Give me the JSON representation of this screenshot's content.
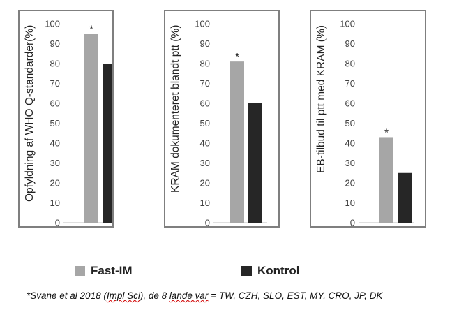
{
  "colors": {
    "fast_im": "#a6a6a6",
    "kontrol": "#262626",
    "axis": "#bfbfbf",
    "frame": "#7f7f7f"
  },
  "chart_data": [
    {
      "type": "bar",
      "ylabel": "Opfyldning af WHO Q-standarder(%)",
      "ylim": [
        0,
        100
      ],
      "yticks": [
        0,
        10,
        20,
        30,
        40,
        50,
        60,
        70,
        80,
        90,
        100
      ],
      "series": [
        {
          "name": "Fast-IM",
          "values": [
            95
          ],
          "annotation": "*"
        },
        {
          "name": "Kontrol",
          "values": [
            80
          ]
        }
      ]
    },
    {
      "type": "bar",
      "ylabel": "KRAM dokumenteret blandt ptt (%)",
      "ylim": [
        0,
        100
      ],
      "yticks": [
        0,
        10,
        20,
        30,
        40,
        50,
        60,
        70,
        80,
        90,
        100
      ],
      "series": [
        {
          "name": "Fast-IM",
          "values": [
            81
          ],
          "annotation": "*"
        },
        {
          "name": "Kontrol",
          "values": [
            60
          ]
        }
      ]
    },
    {
      "type": "bar",
      "ylabel": "EB-tilbud til ptt med KRAM (%)",
      "ylim": [
        0,
        100
      ],
      "yticks": [
        0,
        10,
        20,
        30,
        40,
        50,
        60,
        70,
        80,
        90,
        100
      ],
      "series": [
        {
          "name": "Fast-IM",
          "values": [
            43
          ],
          "annotation": "*"
        },
        {
          "name": "Kontrol",
          "values": [
            25
          ]
        }
      ]
    }
  ],
  "legend": [
    {
      "label": "Fast-IM",
      "color": "#a6a6a6"
    },
    {
      "label": "Kontrol",
      "color": "#262626"
    }
  ],
  "footnote": {
    "before": "*Svane et al 2018 (",
    "underlined": "Impl Sci",
    "after": "), de 8 ",
    "underlined2": "lande var",
    "after2": " = TW, CZH, SLO, EST, MY, CRO, JP, DK"
  }
}
